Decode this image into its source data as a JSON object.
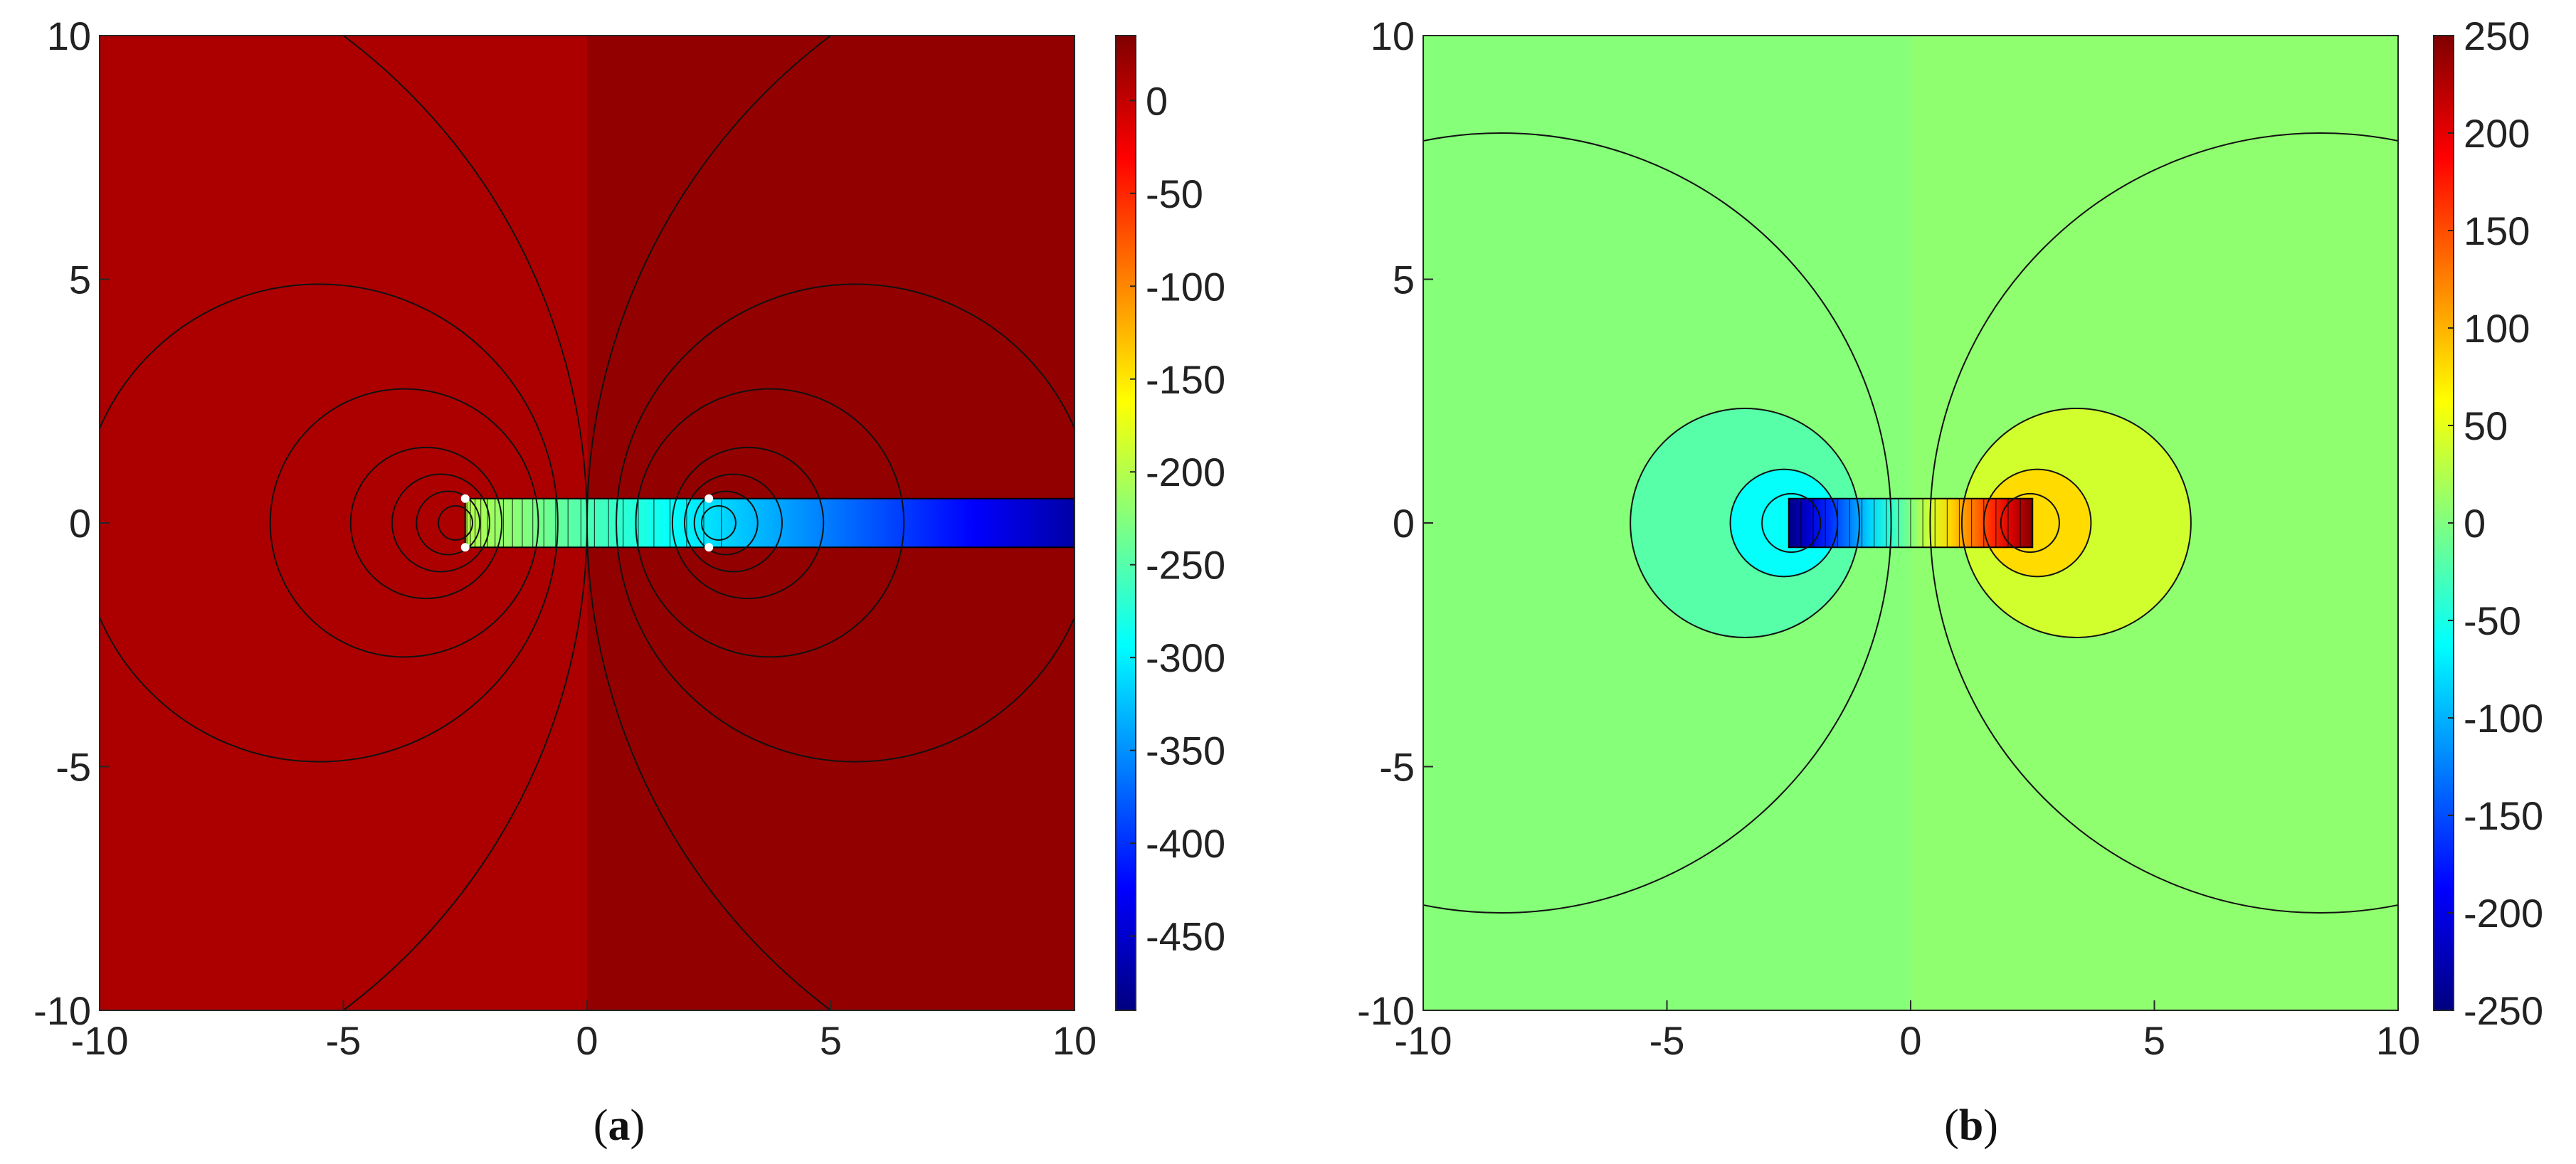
{
  "panels": [
    {
      "caption_open": "(",
      "caption_letter": "a",
      "caption_close": ")"
    },
    {
      "caption_open": "(",
      "caption_letter": "b",
      "caption_close": ")"
    }
  ],
  "chart_data": [
    {
      "type": "heatmap",
      "subtype": "filled contour map",
      "colormap": "jet",
      "xlim": [
        -10,
        10
      ],
      "ylim": [
        -10,
        10
      ],
      "x_ticks": [
        "-10",
        "-5",
        "0",
        "5",
        "10"
      ],
      "y_ticks": [
        "10",
        "5",
        "0",
        "-5",
        "-10"
      ],
      "colorbar": {
        "lim": [
          -490,
          35
        ],
        "ticks": [
          "0",
          "-50",
          "-100",
          "-150",
          "-200",
          "-250",
          "-300",
          "-350",
          "-400",
          "-450"
        ],
        "tick_values": [
          0,
          -50,
          -100,
          -150,
          -200,
          -250,
          -300,
          -350,
          -400,
          -450
        ]
      },
      "background_value_left": 12,
      "background_value_right": 25,
      "strip": {
        "x": [
          -2.5,
          10
        ],
        "y": [
          -0.5,
          0.5
        ],
        "value_start": -200,
        "value_end": -470
      },
      "contour_circles": [
        {
          "cx": -5.5,
          "r": 4.9
        },
        {
          "cx": -3.75,
          "r": 2.75
        },
        {
          "cx": -3.3,
          "r": 1.55
        },
        {
          "cx": -3.0,
          "r": 1.0
        },
        {
          "cx": -2.85,
          "r": 0.65
        },
        {
          "cx": -2.7,
          "r": 0.35
        },
        {
          "cx": 5.5,
          "r": 4.9
        },
        {
          "cx": 3.75,
          "r": 2.75
        },
        {
          "cx": 3.3,
          "r": 1.55
        },
        {
          "cx": 3.0,
          "r": 1.0
        },
        {
          "cx": 2.85,
          "r": 0.65
        },
        {
          "cx": 2.7,
          "r": 0.35
        },
        {
          "cx": -12.5,
          "r": 12.5
        },
        {
          "cx": 12.5,
          "r": 12.5
        }
      ],
      "corner_markers": [
        {
          "x": -2.5,
          "y": 0.5
        },
        {
          "x": -2.5,
          "y": -0.5
        },
        {
          "x": 2.5,
          "y": 0.5
        },
        {
          "x": 2.5,
          "y": -0.5
        }
      ]
    },
    {
      "type": "heatmap",
      "subtype": "filled contour map",
      "colormap": "jet",
      "xlim": [
        -10,
        10
      ],
      "ylim": [
        -10,
        10
      ],
      "x_ticks": [
        "-10",
        "-5",
        "0",
        "5",
        "10"
      ],
      "y_ticks": [
        "10",
        "5",
        "0",
        "-5",
        "-10"
      ],
      "colorbar": {
        "lim": [
          -250,
          250
        ],
        "ticks": [
          "250",
          "200",
          "150",
          "100",
          "50",
          "0",
          "-50",
          "-100",
          "-150",
          "-200",
          "-250"
        ],
        "tick_values": [
          250,
          200,
          150,
          100,
          50,
          0,
          -50,
          -100,
          -150,
          -200,
          -250
        ]
      },
      "background_value_left": 3,
      "background_value_right": 8,
      "strip": {
        "x": [
          -2.5,
          2.5
        ],
        "y": [
          -0.5,
          0.5
        ],
        "value_start": -250,
        "value_end": 250
      },
      "fills": [
        {
          "cx": -3.4,
          "r": 2.35,
          "value": -20
        },
        {
          "cx": 3.4,
          "r": 2.35,
          "value": 40
        },
        {
          "cx": -2.6,
          "r": 1.1,
          "value": -60
        },
        {
          "cx": 2.6,
          "r": 1.1,
          "value": 80
        }
      ],
      "contour_circles": [
        {
          "cx": -8.4,
          "r": 8.0
        },
        {
          "cx": 8.4,
          "r": 8.0
        },
        {
          "cx": -3.4,
          "r": 2.35
        },
        {
          "cx": 3.4,
          "r": 2.35
        },
        {
          "cx": -2.6,
          "r": 1.1
        },
        {
          "cx": 2.6,
          "r": 1.1
        },
        {
          "cx": -2.45,
          "r": 0.6
        },
        {
          "cx": 2.45,
          "r": 0.6
        }
      ]
    }
  ]
}
